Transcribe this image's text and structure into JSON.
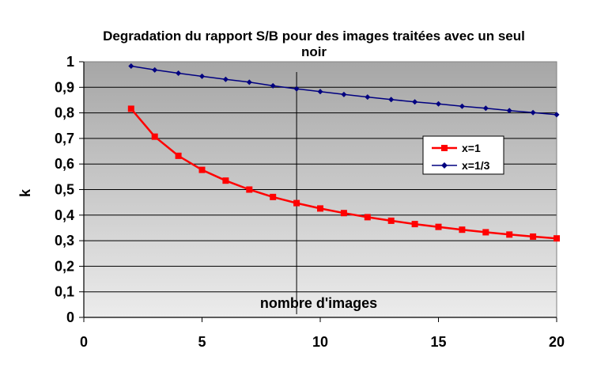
{
  "chart_data": {
    "type": "line",
    "title_line1": "Degradation du rapport S/B pour des images traitées avec un seul",
    "title_line2": "noir",
    "xlabel": "",
    "ylabel": "k",
    "annotation": "nombre d'images",
    "xlim": [
      0,
      20
    ],
    "ylim": [
      0,
      1
    ],
    "x_ticks": [
      "0",
      "5",
      "10",
      "15",
      "20"
    ],
    "y_ticks": [
      "0",
      "0,1",
      "0,2",
      "0,3",
      "0,4",
      "0,5",
      "0,6",
      "0,7",
      "0,8",
      "0,9",
      "1"
    ],
    "grid": true,
    "vertical_marker_x": 9,
    "legend_position": "right",
    "x": [
      2,
      3,
      4,
      5,
      6,
      7,
      8,
      9,
      10,
      11,
      12,
      13,
      14,
      15,
      16,
      17,
      18,
      19,
      20
    ],
    "series": [
      {
        "name": "x=1",
        "color": "#ff0000",
        "marker": "square",
        "values": [
          0.816,
          0.707,
          0.632,
          0.577,
          0.535,
          0.5,
          0.471,
          0.447,
          0.426,
          0.408,
          0.392,
          0.378,
          0.365,
          0.354,
          0.343,
          0.333,
          0.324,
          0.316,
          0.309
        ]
      },
      {
        "name": "x=1/3",
        "color": "#000080",
        "marker": "diamond",
        "values": [
          0.983,
          0.968,
          0.955,
          0.943,
          0.931,
          0.92,
          0.906,
          0.894,
          0.883,
          0.872,
          0.862,
          0.852,
          0.843,
          0.835,
          0.826,
          0.818,
          0.809,
          0.801,
          0.793
        ]
      }
    ]
  }
}
